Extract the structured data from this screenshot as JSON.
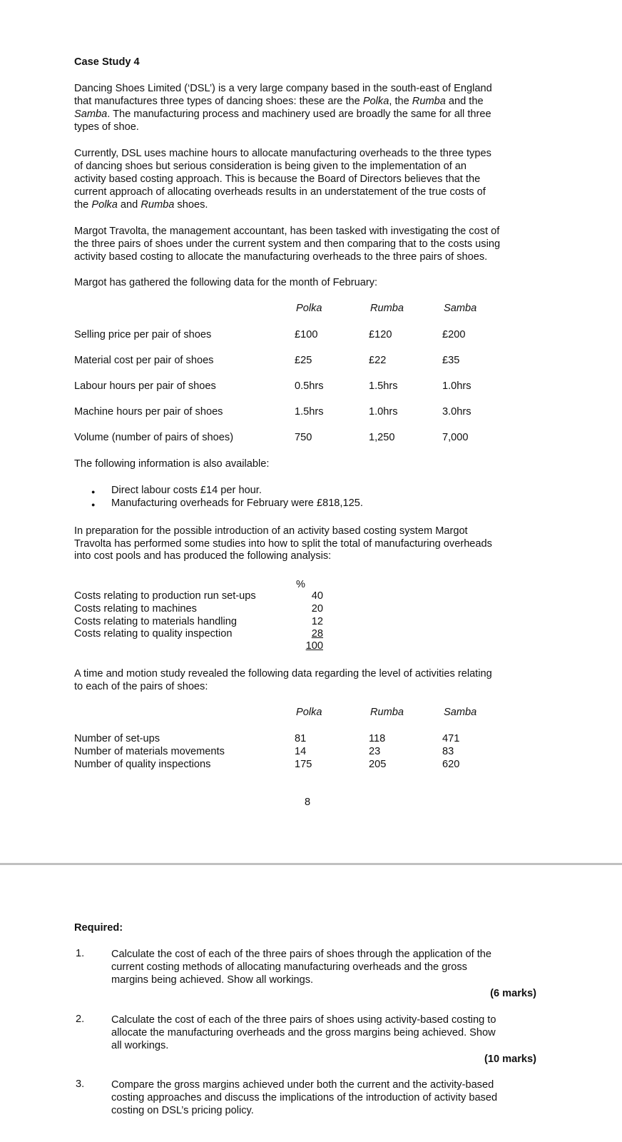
{
  "title": "Case Study 4",
  "intro_paragraphs": [
    [
      [
        {
          "t": "Dancing Shoes Limited (‘DSL’) is a very large company based in the south-east of England"
        }
      ],
      [
        {
          "t": "that manufactures three types of dancing shoes: these are the "
        },
        {
          "t": "Polka",
          "i": true
        },
        {
          "t": ", the "
        },
        {
          "t": "Rumba",
          "i": true
        },
        {
          "t": " and the"
        }
      ],
      [
        {
          "t": "Samba",
          "i": true
        },
        {
          "t": ". The manufacturing process and machinery used are broadly the same for all three"
        }
      ],
      [
        {
          "t": "types of shoe."
        }
      ]
    ],
    [
      [
        {
          "t": "Currently, DSL uses machine hours to allocate manufacturing overheads to the three types"
        }
      ],
      [
        {
          "t": "of dancing shoes but serious consideration is being given to the implementation of an"
        }
      ],
      [
        {
          "t": "activity based costing approach. This is because the Board of Directors believes that the"
        }
      ],
      [
        {
          "t": "current approach of allocating overheads results in an understatement of the true costs of"
        }
      ],
      [
        {
          "t": "the "
        },
        {
          "t": "Polka",
          "i": true
        },
        {
          "t": " and "
        },
        {
          "t": "Rumba",
          "i": true
        },
        {
          "t": " shoes."
        }
      ]
    ],
    [
      [
        {
          "t": "Margot Travolta, the management accountant, has been tasked with investigating the cost of"
        }
      ],
      [
        {
          "t": "the three pairs of shoes under the current system and then comparing that to the costs using"
        }
      ],
      [
        {
          "t": "activity based costing to allocate the manufacturing overheads to the three pairs of shoes."
        }
      ]
    ]
  ],
  "gathered_label": "Margot has gathered the following data for the month of February:",
  "product_table": {
    "headers": [
      "Polka",
      "Rumba",
      "Samba"
    ],
    "rows": [
      {
        "label": "Selling price per pair of shoes",
        "values": [
          "£100",
          "£120",
          "£200"
        ]
      },
      {
        "label": "Material cost per pair of shoes",
        "values": [
          "£25",
          "£22",
          "£35"
        ]
      },
      {
        "label": "Labour hours per pair of shoes",
        "values": [
          "0.5hrs",
          "1.5hrs",
          "1.0hrs"
        ]
      },
      {
        "label": "Machine hours per pair of shoes",
        "values": [
          "1.5hrs",
          "1.0hrs",
          "3.0hrs"
        ]
      },
      {
        "label": "Volume (number of pairs of shoes)",
        "values": [
          "750",
          "1,250",
          "7,000"
        ]
      }
    ]
  },
  "also_available_label": "The following information is also available:",
  "bullets": [
    "Direct labour costs £14 per hour.",
    "Manufacturing overheads for February were £818,125."
  ],
  "preparation_paragraph": [
    "In preparation for the possible introduction of an activity based costing system Margot",
    "Travolta has performed some studies into how to split the total of manufacturing overheads",
    "into cost pools and has produced the following analysis:"
  ],
  "cost_pool_table": {
    "header": "%",
    "rows": [
      {
        "label": "Costs relating to production run set-ups",
        "value": "40"
      },
      {
        "label": "Costs relating to machines",
        "value": "20"
      },
      {
        "label": "Costs relating to materials handling",
        "value": "12"
      },
      {
        "label": "Costs relating to quality inspection",
        "value": "28"
      }
    ],
    "total": "100"
  },
  "time_motion_paragraph": [
    "A time and motion study revealed the following data regarding the level of activities relating",
    "to each of the pairs of shoes:"
  ],
  "activity_table": {
    "headers": [
      "Polka",
      "Rumba",
      "Samba"
    ],
    "rows": [
      {
        "label": "Number of set-ups",
        "values": [
          "81",
          "118",
          "471"
        ]
      },
      {
        "label": "Number of materials movements",
        "values": [
          "14",
          "23",
          "83"
        ]
      },
      {
        "label": "Number of quality inspections",
        "values": [
          "175",
          "205",
          "620"
        ]
      }
    ]
  },
  "page_number": "8",
  "required_label": "Required:",
  "questions": [
    {
      "number": "1.",
      "lines": [
        "Calculate the cost of each of the three pairs of shoes through the application of the",
        "current costing methods of allocating manufacturing overheads and the gross",
        "margins being achieved. Show all workings."
      ],
      "marks": "(6 marks)"
    },
    {
      "number": "2.",
      "lines": [
        "Calculate the cost of each of the three pairs of shoes using activity-based costing to",
        "allocate the manufacturing overheads and the gross margins being achieved. Show",
        "all workings."
      ],
      "marks": "(10 marks)"
    },
    {
      "number": "3.",
      "lines": [
        "Compare the gross margins achieved under both the current and the activity-based",
        "costing approaches and discuss the implications of the introduction of activity based",
        "costing on DSL’s pricing policy."
      ],
      "marks": ""
    }
  ]
}
